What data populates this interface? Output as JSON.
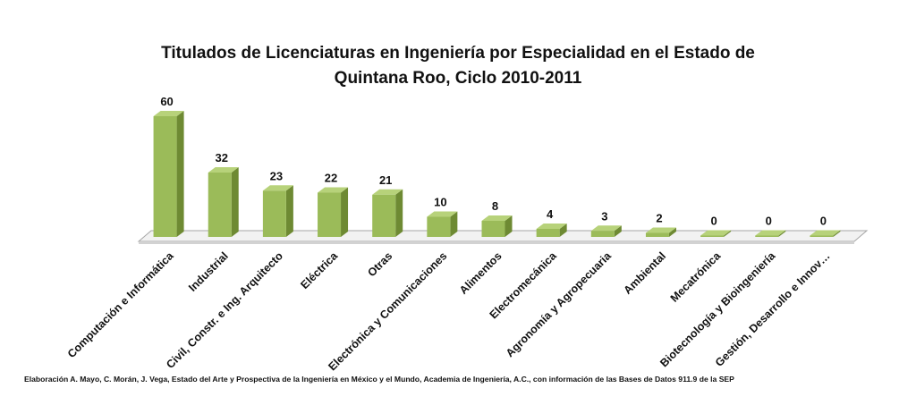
{
  "chart_data": {
    "type": "bar",
    "title_lines": [
      "Titulados de Licenciaturas en Ingeniería por Especialidad en el Estado de",
      "Quintana Roo, Ciclo 2010-2011"
    ],
    "categories": [
      "Computación e Informática",
      "Industrial",
      "Civil, Constr. e Ing. Arquitecto",
      "Eléctrica",
      "Otras",
      "Electrónica y Comunicaciones",
      "Alimentos",
      "Electromecánica",
      "Agronomía y Agropecuaria",
      "Ambiental",
      "Mecatrónica",
      "Biotecnología y Bioingeniería",
      "Gestión, Desarrollo e Innov…"
    ],
    "values": [
      60,
      32,
      23,
      22,
      21,
      10,
      8,
      4,
      3,
      2,
      0,
      0,
      0
    ],
    "data_labels": [
      "60",
      "32",
      "23",
      "22",
      "21",
      "10",
      "8",
      "4",
      "3",
      "2",
      "0",
      "0",
      "0"
    ],
    "ylim": [
      0,
      60
    ],
    "grid": false,
    "legend": "none",
    "colors": {
      "bar_front": "#9bbb59",
      "bar_side": "#6e8a33",
      "bar_top": "#b7d27a",
      "floor": "#f2f2f2",
      "floor_edge": "#a6a6a6"
    }
  },
  "source_note": "Elaboración A. Mayo, C. Morán, J. Vega, Estado del Arte y Prospectiva de la Ingeniería en México y el Mundo, Academia de Ingeniería, A.C., con información de las Bases de Datos  911.9  de la SEP"
}
